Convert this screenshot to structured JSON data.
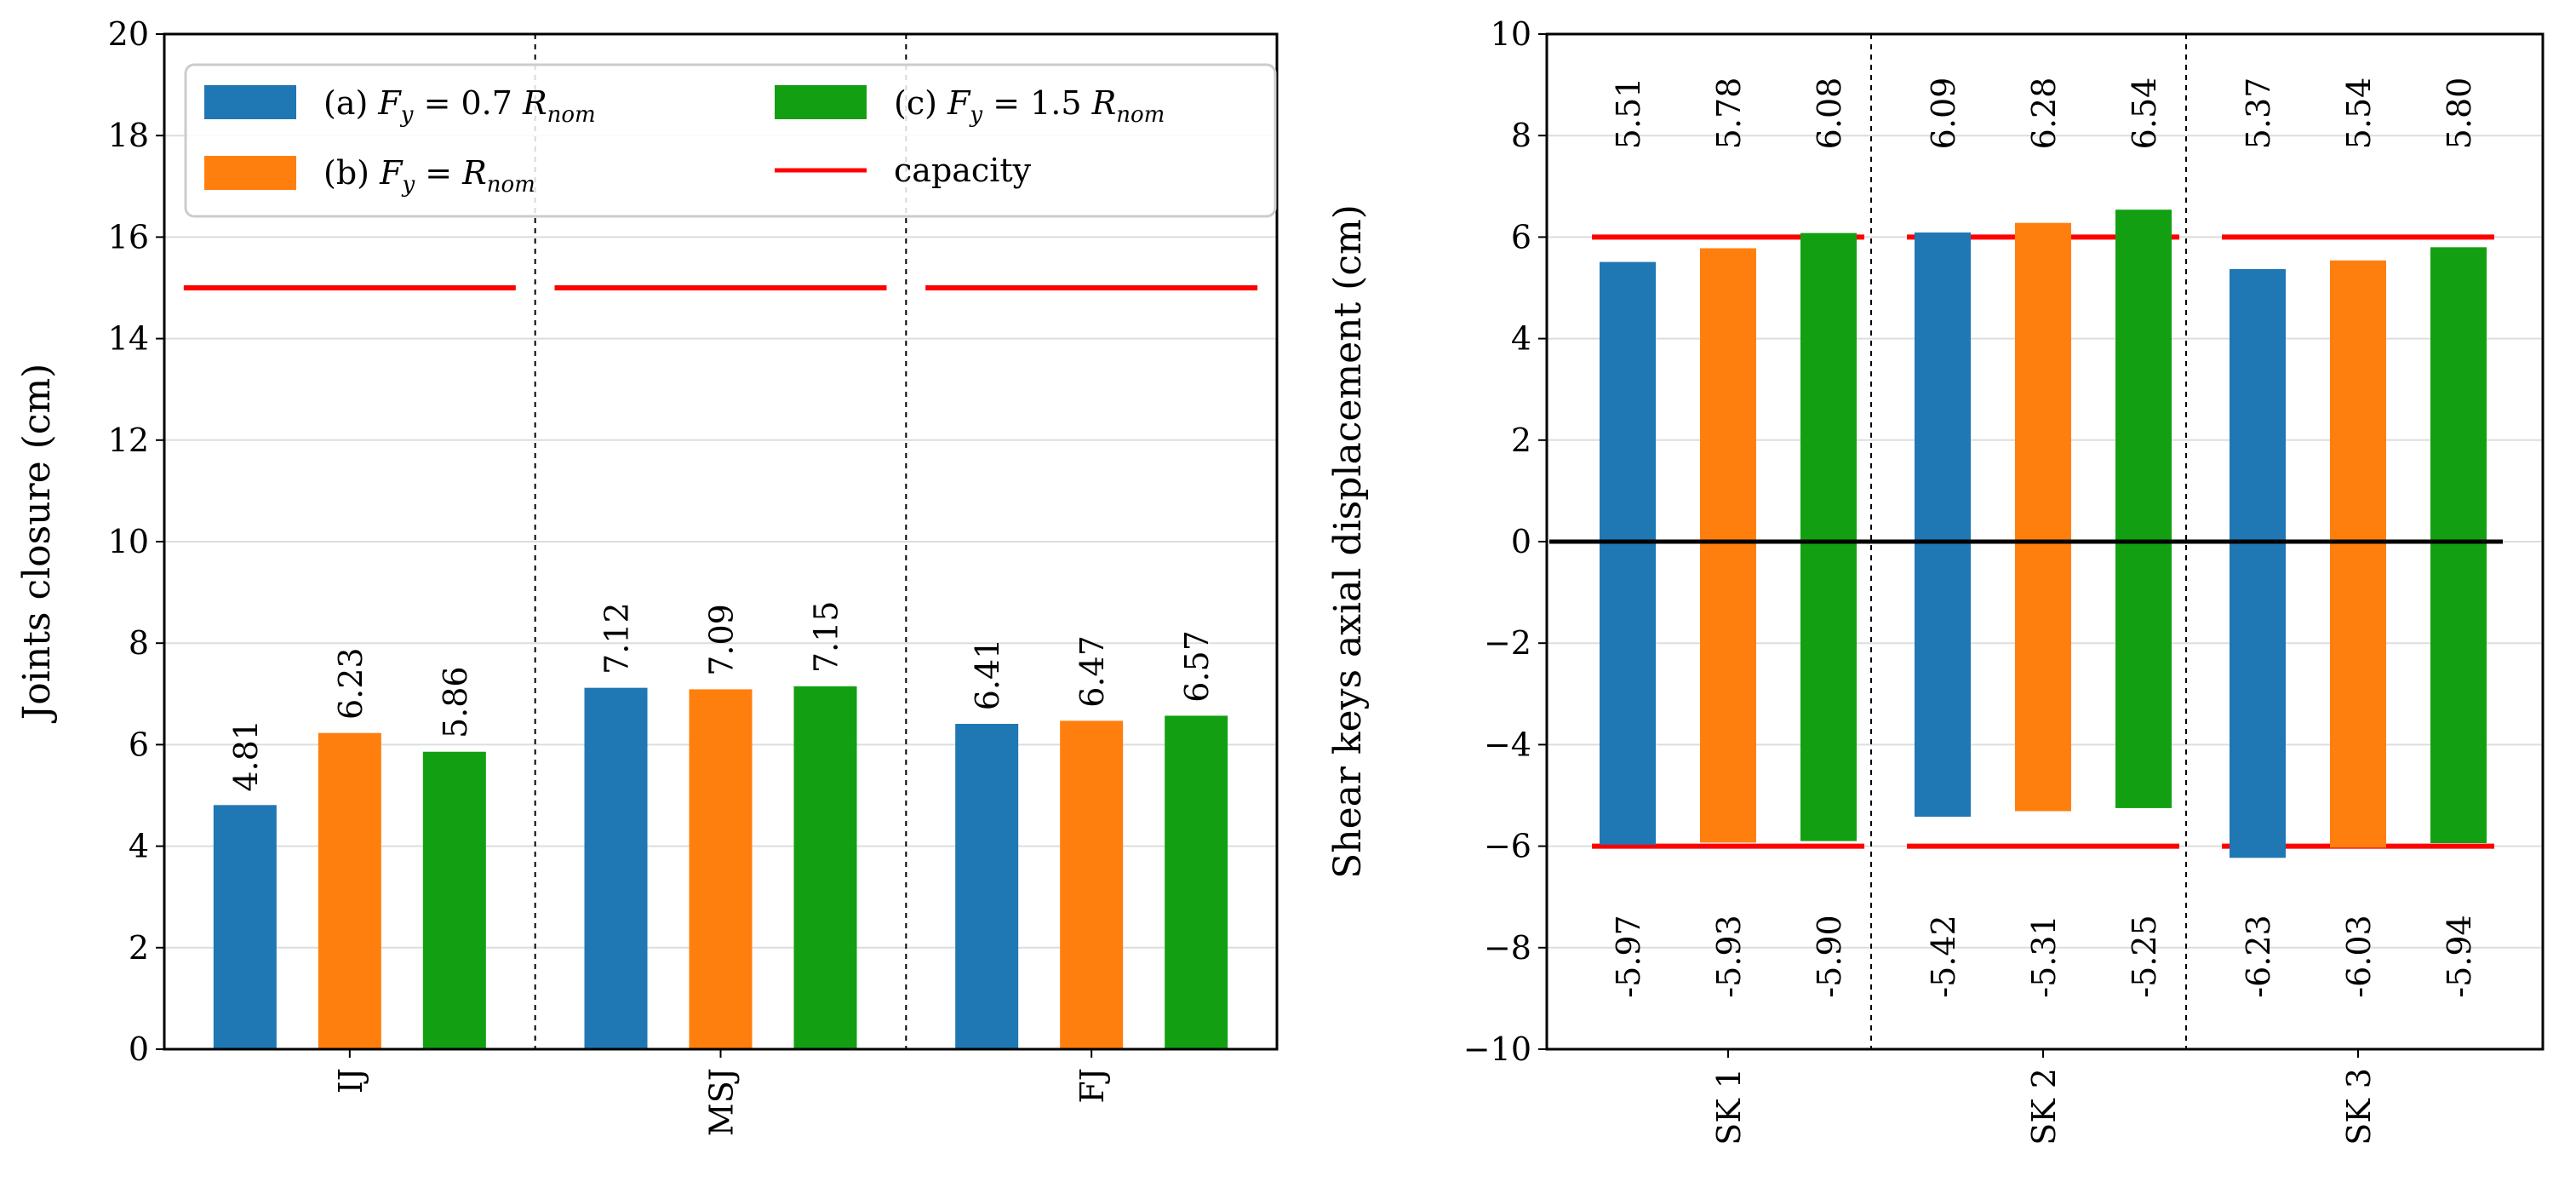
{
  "colors": {
    "a": "#1f77b4",
    "b": "#ff7f0e",
    "c": "#12a012",
    "capacity": "#ff0000",
    "zero_line": "#000000",
    "grid": "#dddddd"
  },
  "legend": {
    "placement": "top-left of left panel",
    "a_prefix": "(a)",
    "a_math": "F",
    "a_sub": "y",
    "a_rest": " = 0.7 ",
    "a_R": "R",
    "a_Rsub": "nom",
    "b_prefix": "(b)",
    "b_math": "F",
    "b_sub": "y",
    "b_rest": " = ",
    "b_R": "R",
    "b_Rsub": "nom",
    "c_prefix": "(c)",
    "c_math": "F",
    "c_sub": "y",
    "c_rest": " = 1.5 ",
    "c_R": "R",
    "c_Rsub": "nom",
    "capacity": "capacity"
  },
  "chart_data": [
    {
      "type": "bar",
      "ylabel": "Joints closure (cm)",
      "xlabel": "",
      "ylim": [
        0,
        20
      ],
      "yticks": [
        "0",
        "2",
        "4",
        "6",
        "8",
        "10",
        "12",
        "14",
        "16",
        "18",
        "20"
      ],
      "grid": "horizontal",
      "categories": [
        "IJ",
        "MSJ",
        "FJ"
      ],
      "series": [
        {
          "name": "(a) F_y = 0.7 R_nom",
          "values": [
            4.81,
            7.12,
            6.41
          ],
          "labels": [
            "4.81",
            "7.12",
            "6.41"
          ]
        },
        {
          "name": "(b) F_y = R_nom",
          "values": [
            6.23,
            7.09,
            6.47
          ],
          "labels": [
            "6.23",
            "7.09",
            "6.47"
          ]
        },
        {
          "name": "(c) F_y = 1.5 R_nom",
          "values": [
            5.86,
            7.15,
            6.57
          ],
          "labels": [
            "5.86",
            "7.15",
            "6.57"
          ]
        }
      ],
      "capacity": 15
    },
    {
      "type": "bar",
      "ylabel": "Shear keys axial displacement (cm)",
      "xlabel": "",
      "ylim": [
        -10,
        10
      ],
      "yticks": [
        "−10",
        "−8",
        "−6",
        "−4",
        "−2",
        "0",
        "2",
        "4",
        "6",
        "8",
        "10"
      ],
      "grid": "horizontal",
      "categories": [
        "SK 1",
        "SK 2",
        "SK 3"
      ],
      "series": [
        {
          "name": "(a) F_y = 0.7 R_nom",
          "pos": [
            5.51,
            6.09,
            5.37
          ],
          "neg": [
            -5.97,
            -5.42,
            -6.23
          ],
          "pos_labels": [
            "5.51",
            "6.09",
            "5.37"
          ],
          "neg_labels": [
            "-5.97",
            "-5.42",
            "-6.23"
          ]
        },
        {
          "name": "(b) F_y = R_nom",
          "pos": [
            5.78,
            6.28,
            5.54
          ],
          "neg": [
            -5.93,
            -5.31,
            -6.03
          ],
          "pos_labels": [
            "5.78",
            "6.28",
            "5.54"
          ],
          "neg_labels": [
            "-5.93",
            "-5.31",
            "-6.03"
          ]
        },
        {
          "name": "(c) F_y = 1.5 R_nom",
          "pos": [
            6.08,
            6.54,
            5.8
          ],
          "neg": [
            -5.9,
            -5.25,
            -5.94
          ],
          "pos_labels": [
            "6.08",
            "6.54",
            "5.80"
          ],
          "neg_labels": [
            "-5.90",
            "-5.25",
            "-5.94"
          ]
        }
      ],
      "capacity": [
        6,
        -6
      ],
      "zero_line": 0
    }
  ]
}
